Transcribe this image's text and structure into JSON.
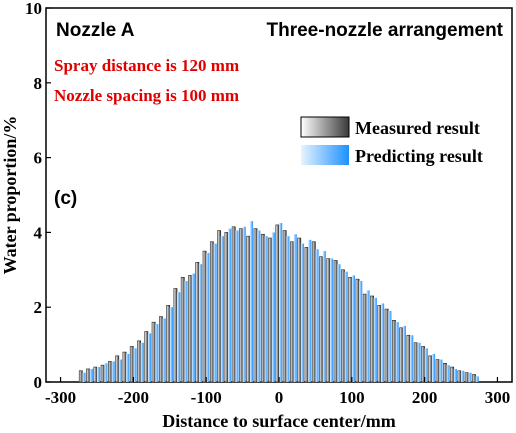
{
  "chart_data": {
    "type": "bar",
    "title_left": "Nozzle A",
    "title_right": "Three-nozzle arrangement",
    "annotations": [
      "Spray distance is 120 mm",
      "Nozzle spacing is 100 mm"
    ],
    "panel_label": "(c)",
    "xlabel": "Distance to surface center/mm",
    "ylabel": "Water proportion/%",
    "xlim": [
      -320,
      320
    ],
    "ylim": [
      0,
      10
    ],
    "x_ticks": [
      -300,
      -200,
      -100,
      0,
      100,
      200,
      300
    ],
    "y_ticks": [
      0,
      2,
      4,
      6,
      8,
      10
    ],
    "legend_position": "upper-right",
    "grid": false,
    "x": [
      -270,
      -260,
      -250,
      -240,
      -230,
      -220,
      -210,
      -200,
      -190,
      -180,
      -170,
      -160,
      -150,
      -140,
      -130,
      -120,
      -110,
      -100,
      -90,
      -80,
      -70,
      -60,
      -50,
      -40,
      -30,
      -20,
      -10,
      0,
      10,
      20,
      30,
      40,
      50,
      60,
      70,
      80,
      90,
      100,
      110,
      120,
      130,
      140,
      150,
      160,
      170,
      180,
      190,
      200,
      210,
      220,
      230,
      240,
      250,
      260,
      270
    ],
    "series": [
      {
        "name": "Measured result",
        "color_dark": "#3a3a3a",
        "color_light": "#ffffff",
        "values": [
          0.3,
          0.35,
          0.4,
          0.45,
          0.55,
          0.7,
          0.8,
          0.95,
          1.1,
          1.35,
          1.6,
          1.75,
          2.05,
          2.5,
          2.8,
          2.85,
          3.2,
          3.5,
          3.75,
          4.05,
          4.0,
          4.15,
          4.1,
          3.9,
          4.1,
          3.95,
          3.85,
          4.2,
          4.05,
          3.75,
          3.85,
          3.6,
          3.75,
          3.35,
          3.3,
          3.25,
          3.0,
          2.8,
          2.75,
          2.35,
          2.3,
          2.05,
          1.95,
          1.65,
          1.45,
          1.25,
          1.05,
          0.95,
          0.7,
          0.6,
          0.5,
          0.4,
          0.3,
          0.25,
          0.2
        ]
      },
      {
        "name": "Predicting result",
        "color_dark": "#1e90ff",
        "color_light": "#e6f4ff",
        "values": [
          0.25,
          0.35,
          0.4,
          0.5,
          0.55,
          0.6,
          0.75,
          0.9,
          1.05,
          1.3,
          1.55,
          1.7,
          2.0,
          2.4,
          2.7,
          2.9,
          3.15,
          3.45,
          3.7,
          3.9,
          4.1,
          4.05,
          4.15,
          4.3,
          4.05,
          3.9,
          4.0,
          4.25,
          3.9,
          3.95,
          3.7,
          3.8,
          3.55,
          3.5,
          3.3,
          3.15,
          2.95,
          2.85,
          2.7,
          2.45,
          2.25,
          2.1,
          1.9,
          1.6,
          1.5,
          1.25,
          1.05,
          0.9,
          0.75,
          0.6,
          0.45,
          0.35,
          0.3,
          0.25,
          0.15
        ]
      }
    ]
  },
  "colors": {
    "annotation": "#e00000",
    "axis": "#000000",
    "text": "#000000"
  }
}
